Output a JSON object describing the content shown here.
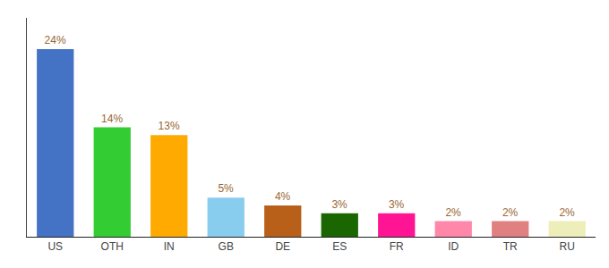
{
  "chart_data": {
    "type": "bar",
    "categories": [
      "US",
      "OTH",
      "IN",
      "GB",
      "DE",
      "ES",
      "FR",
      "ID",
      "TR",
      "RU"
    ],
    "values": [
      24,
      14,
      13,
      5,
      4,
      3,
      3,
      2,
      2,
      2
    ],
    "value_labels": [
      "24%",
      "14%",
      "13%",
      "5%",
      "4%",
      "3%",
      "3%",
      "2%",
      "2%",
      "2%"
    ],
    "colors": [
      "#4472c4",
      "#33cc33",
      "#ffaa00",
      "#88ccee",
      "#b8601a",
      "#1a6600",
      "#ff1493",
      "#ff88aa",
      "#e08080",
      "#eeeebb"
    ],
    "ylim": [
      0,
      28
    ],
    "grid": false,
    "data_labels": true,
    "tick_labels": "x"
  }
}
